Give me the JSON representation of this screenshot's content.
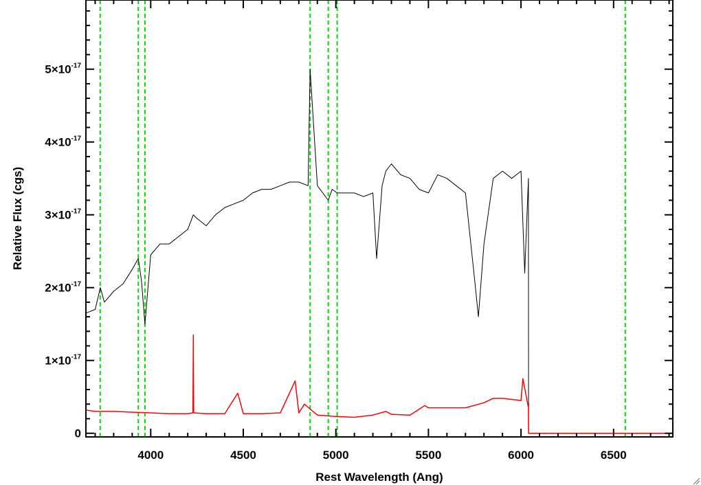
{
  "chart_data": {
    "type": "line",
    "title": "",
    "xlabel": "Rest Wavelength (Ang)",
    "ylabel": "Relative Flux (cgs)",
    "xlim": [
      3650,
      6820
    ],
    "ylim": [
      -0.05,
      5.95
    ],
    "y_scale_factor": "×10^-17",
    "x_ticks": [
      4000,
      4500,
      5000,
      5500,
      6000,
      6500
    ],
    "x_tick_labels": [
      "4000",
      "4500",
      "5000",
      "5500",
      "6000",
      "6500"
    ],
    "y_ticks": [
      0,
      1,
      2,
      3,
      4,
      5
    ],
    "y_tick_labels": [
      {
        "mantissa": "0",
        "exponent": ""
      },
      {
        "mantissa": "1×10",
        "exponent": "-17"
      },
      {
        "mantissa": "2×10",
        "exponent": "-17"
      },
      {
        "mantissa": "3×10",
        "exponent": "-17"
      },
      {
        "mantissa": "4×10",
        "exponent": "-17"
      },
      {
        "mantissa": "5×10",
        "exponent": "-17"
      }
    ],
    "grid": false,
    "legend": "none",
    "series": [
      {
        "color": "#000000",
        "x": [
          3650,
          3700,
          3728,
          3750,
          3800,
          3850,
          3900,
          3933,
          3950,
          3969,
          4000,
          4050,
          4100,
          4150,
          4200,
          4230,
          4250,
          4300,
          4350,
          4400,
          4450,
          4500,
          4550,
          4600,
          4650,
          4700,
          4750,
          4800,
          4850,
          4861,
          4900,
          4959,
          4980,
          5007,
          5050,
          5100,
          5150,
          5200,
          5220,
          5250,
          5270,
          5300,
          5350,
          5400,
          5450,
          5500,
          5550,
          5600,
          5650,
          5700,
          5750,
          5770,
          5800,
          5850,
          5900,
          5950,
          6000,
          6020,
          6040,
          6041,
          6820
        ],
        "y": [
          1.65,
          1.7,
          2.0,
          1.8,
          1.95,
          2.05,
          2.25,
          2.4,
          2.1,
          1.5,
          2.45,
          2.6,
          2.6,
          2.7,
          2.8,
          3.0,
          2.95,
          2.85,
          3.0,
          3.1,
          3.15,
          3.2,
          3.3,
          3.35,
          3.35,
          3.4,
          3.45,
          3.45,
          3.4,
          5.0,
          3.4,
          3.2,
          3.35,
          3.3,
          3.3,
          3.3,
          3.25,
          3.3,
          2.4,
          3.4,
          3.6,
          3.7,
          3.55,
          3.5,
          3.35,
          3.3,
          3.55,
          3.5,
          3.4,
          3.3,
          2.1,
          1.6,
          2.6,
          3.5,
          3.6,
          3.5,
          3.6,
          2.2,
          3.5,
          0.0,
          0.0
        ]
      },
      {
        "color": "#ff0000",
        "x": [
          3650,
          3700,
          3800,
          3900,
          4000,
          4100,
          4200,
          4228,
          4230,
          4232,
          4300,
          4400,
          4470,
          4500,
          4600,
          4700,
          4780,
          4800,
          4830,
          4900,
          5000,
          5100,
          5200,
          5270,
          5300,
          5400,
          5480,
          5500,
          5600,
          5700,
          5800,
          5850,
          5900,
          6000,
          6010,
          6040,
          6041,
          6820
        ],
        "y": [
          0.32,
          0.3,
          0.3,
          0.29,
          0.28,
          0.27,
          0.27,
          0.28,
          1.35,
          0.28,
          0.27,
          0.27,
          0.55,
          0.27,
          0.27,
          0.28,
          0.72,
          0.28,
          0.4,
          0.25,
          0.23,
          0.22,
          0.25,
          0.3,
          0.26,
          0.25,
          0.38,
          0.35,
          0.35,
          0.35,
          0.42,
          0.48,
          0.48,
          0.45,
          0.75,
          0.35,
          0.0,
          0.0
        ]
      }
    ],
    "vertical_markers": {
      "color": "#00dd00",
      "style": "dashed",
      "x": [
        3727,
        3933,
        3969,
        4861,
        4959,
        5007,
        6563
      ]
    }
  }
}
